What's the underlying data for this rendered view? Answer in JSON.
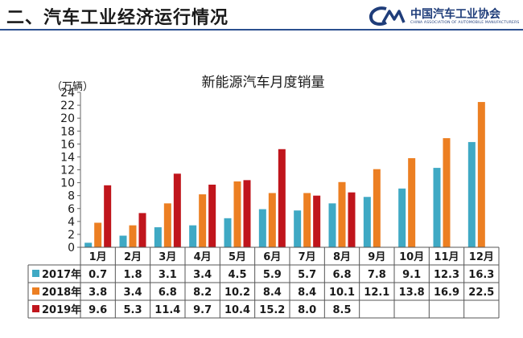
{
  "header": {
    "title": "二、汽车工业经济运行情况",
    "logo_text": "中国汽车工业协会",
    "logo_subtitle": "CHINA ASSOCIATION OF AUTOMOBILE MANUFACTURERS",
    "logo_mark": "CAAM",
    "accent_color": "#2b4f8f"
  },
  "chart_data": {
    "type": "bar",
    "title": "新能源汽车月度销量",
    "ylabel": "（万辆）",
    "ylim": [
      0,
      24
    ],
    "ytick_step": 2,
    "grid": false,
    "legend": "table-below",
    "categories": [
      "1月",
      "2月",
      "3月",
      "4月",
      "5月",
      "6月",
      "7月",
      "8月",
      "9月",
      "10月",
      "11月",
      "12月"
    ],
    "series": [
      {
        "name": "2017年",
        "color": "#3fa9c4",
        "values": [
          0.7,
          1.8,
          3.1,
          3.4,
          4.5,
          5.9,
          5.7,
          6.8,
          7.8,
          9.1,
          12.3,
          16.3
        ]
      },
      {
        "name": "2018年",
        "color": "#ec7f22",
        "values": [
          3.8,
          3.4,
          6.8,
          8.2,
          10.2,
          8.4,
          8.4,
          10.1,
          12.1,
          13.8,
          16.9,
          22.5
        ]
      },
      {
        "name": "2019年",
        "color": "#c0151c",
        "values": [
          9.6,
          5.3,
          11.4,
          9.7,
          10.4,
          15.2,
          8.0,
          8.5,
          null,
          null,
          null,
          null
        ]
      }
    ]
  }
}
